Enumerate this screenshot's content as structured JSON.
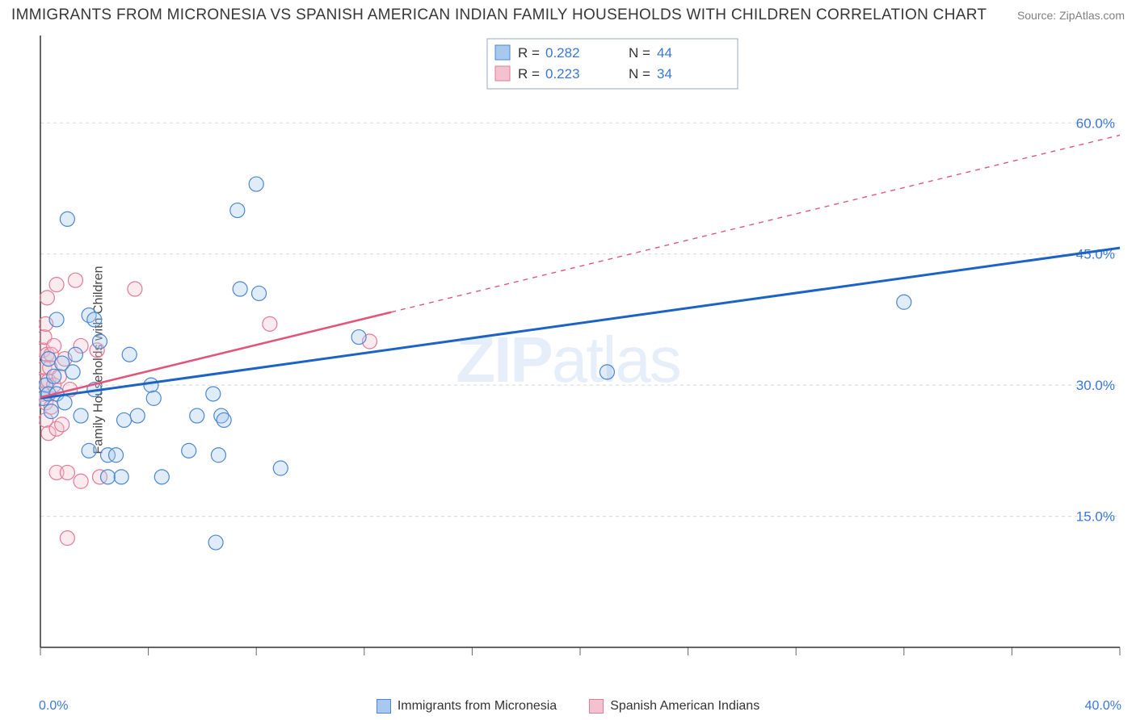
{
  "title": "IMMIGRANTS FROM MICRONESIA VS SPANISH AMERICAN INDIAN FAMILY HOUSEHOLDS WITH CHILDREN CORRELATION CHART",
  "source": "Source: ZipAtlas.com",
  "y_axis_label": "Family Households with Children",
  "watermark_prefix": "ZIP",
  "watermark_suffix": "atlas",
  "chart": {
    "type": "scatter",
    "background_color": "#ffffff",
    "axis_color": "#333333",
    "grid_color": "#d8d8d8",
    "tick_color": "#666666",
    "xlim": [
      0,
      40
    ],
    "ylim": [
      0,
      70
    ],
    "x_ticks": [
      0,
      4,
      8,
      12,
      16,
      20,
      24,
      28,
      32,
      36,
      40
    ],
    "y_gridlines": [
      15,
      30,
      45,
      60
    ],
    "y_tick_labels": [
      "15.0%",
      "30.0%",
      "45.0%",
      "60.0%"
    ],
    "y_tick_color": "#3a77d6",
    "y_tick_fontsize": 17,
    "x_origin_label": "0.0%",
    "x_max_label": "40.0%",
    "marker_radius": 9,
    "marker_stroke_width": 1.2,
    "marker_fill_opacity": 0.35
  },
  "series": [
    {
      "name": "Immigrants from Micronesia",
      "color_fill": "#a9c8ee",
      "color_stroke": "#4b87d1",
      "trend_color": "#1d63c7",
      "trend_width": 3,
      "trend_solid_xmax": 40,
      "trend_intercept": 28.5,
      "trend_slope": 0.43,
      "R_label": "R = ",
      "R": "0.282",
      "N_label": "N = ",
      "N": "44",
      "points": [
        [
          0.1,
          28.5
        ],
        [
          0.2,
          30.0
        ],
        [
          0.3,
          33.0
        ],
        [
          0.3,
          29.0
        ],
        [
          0.4,
          27.0
        ],
        [
          0.5,
          31.0
        ],
        [
          0.6,
          37.5
        ],
        [
          0.6,
          29.0
        ],
        [
          0.8,
          32.5
        ],
        [
          0.9,
          28.0
        ],
        [
          1.0,
          49.0
        ],
        [
          1.2,
          31.5
        ],
        [
          1.3,
          33.5
        ],
        [
          1.5,
          26.5
        ],
        [
          1.8,
          38.0
        ],
        [
          1.8,
          22.5
        ],
        [
          2.0,
          29.5
        ],
        [
          2.0,
          37.5
        ],
        [
          2.2,
          35.0
        ],
        [
          2.5,
          22.0
        ],
        [
          2.5,
          19.5
        ],
        [
          2.8,
          22.0
        ],
        [
          3.0,
          19.5
        ],
        [
          3.1,
          26.0
        ],
        [
          3.3,
          33.5
        ],
        [
          3.6,
          26.5
        ],
        [
          4.1,
          30.0
        ],
        [
          4.2,
          28.5
        ],
        [
          4.5,
          19.5
        ],
        [
          5.5,
          22.5
        ],
        [
          5.8,
          26.5
        ],
        [
          6.4,
          29.0
        ],
        [
          6.5,
          12.0
        ],
        [
          6.6,
          22.0
        ],
        [
          6.7,
          26.5
        ],
        [
          6.8,
          26.0
        ],
        [
          7.3,
          50.0
        ],
        [
          7.4,
          41.0
        ],
        [
          8.0,
          53.0
        ],
        [
          8.1,
          40.5
        ],
        [
          8.9,
          20.5
        ],
        [
          11.8,
          35.5
        ],
        [
          21.0,
          31.5
        ],
        [
          32.0,
          39.5
        ]
      ]
    },
    {
      "name": "Spanish American Indians",
      "color_fill": "#f4c2ce",
      "color_stroke": "#e37a96",
      "trend_color": "#e05578",
      "trend_width": 2.5,
      "trend_solid_xmax": 13,
      "trend_intercept": 28.6,
      "trend_slope": 0.75,
      "R_label": "R = ",
      "R": "0.223",
      "N_label": "N = ",
      "N": "34",
      "points": [
        [
          0.1,
          34.0
        ],
        [
          0.1,
          30.5
        ],
        [
          0.1,
          29.0
        ],
        [
          0.15,
          32.0
        ],
        [
          0.15,
          35.5
        ],
        [
          0.2,
          28.0
        ],
        [
          0.2,
          37.0
        ],
        [
          0.2,
          26.0
        ],
        [
          0.25,
          40.0
        ],
        [
          0.25,
          33.5
        ],
        [
          0.3,
          30.5
        ],
        [
          0.3,
          24.5
        ],
        [
          0.35,
          32.0
        ],
        [
          0.4,
          33.5
        ],
        [
          0.4,
          27.5
        ],
        [
          0.5,
          30.0
        ],
        [
          0.5,
          34.5
        ],
        [
          0.6,
          20.0
        ],
        [
          0.6,
          41.5
        ],
        [
          0.6,
          25.0
        ],
        [
          0.7,
          31.0
        ],
        [
          0.8,
          25.5
        ],
        [
          0.9,
          33.0
        ],
        [
          1.0,
          20.0
        ],
        [
          1.0,
          12.5
        ],
        [
          1.1,
          29.5
        ],
        [
          1.3,
          42.0
        ],
        [
          1.5,
          34.5
        ],
        [
          1.5,
          19.0
        ],
        [
          2.1,
          34.0
        ],
        [
          2.2,
          19.5
        ],
        [
          3.5,
          41.0
        ],
        [
          8.5,
          37.0
        ],
        [
          12.2,
          35.0
        ]
      ]
    }
  ],
  "top_legend": {
    "border_color": "#9aa9bf",
    "bg_color": "#ffffff",
    "label_color": "#333333",
    "value_color": "#3a77d6",
    "fontsize": 17
  }
}
